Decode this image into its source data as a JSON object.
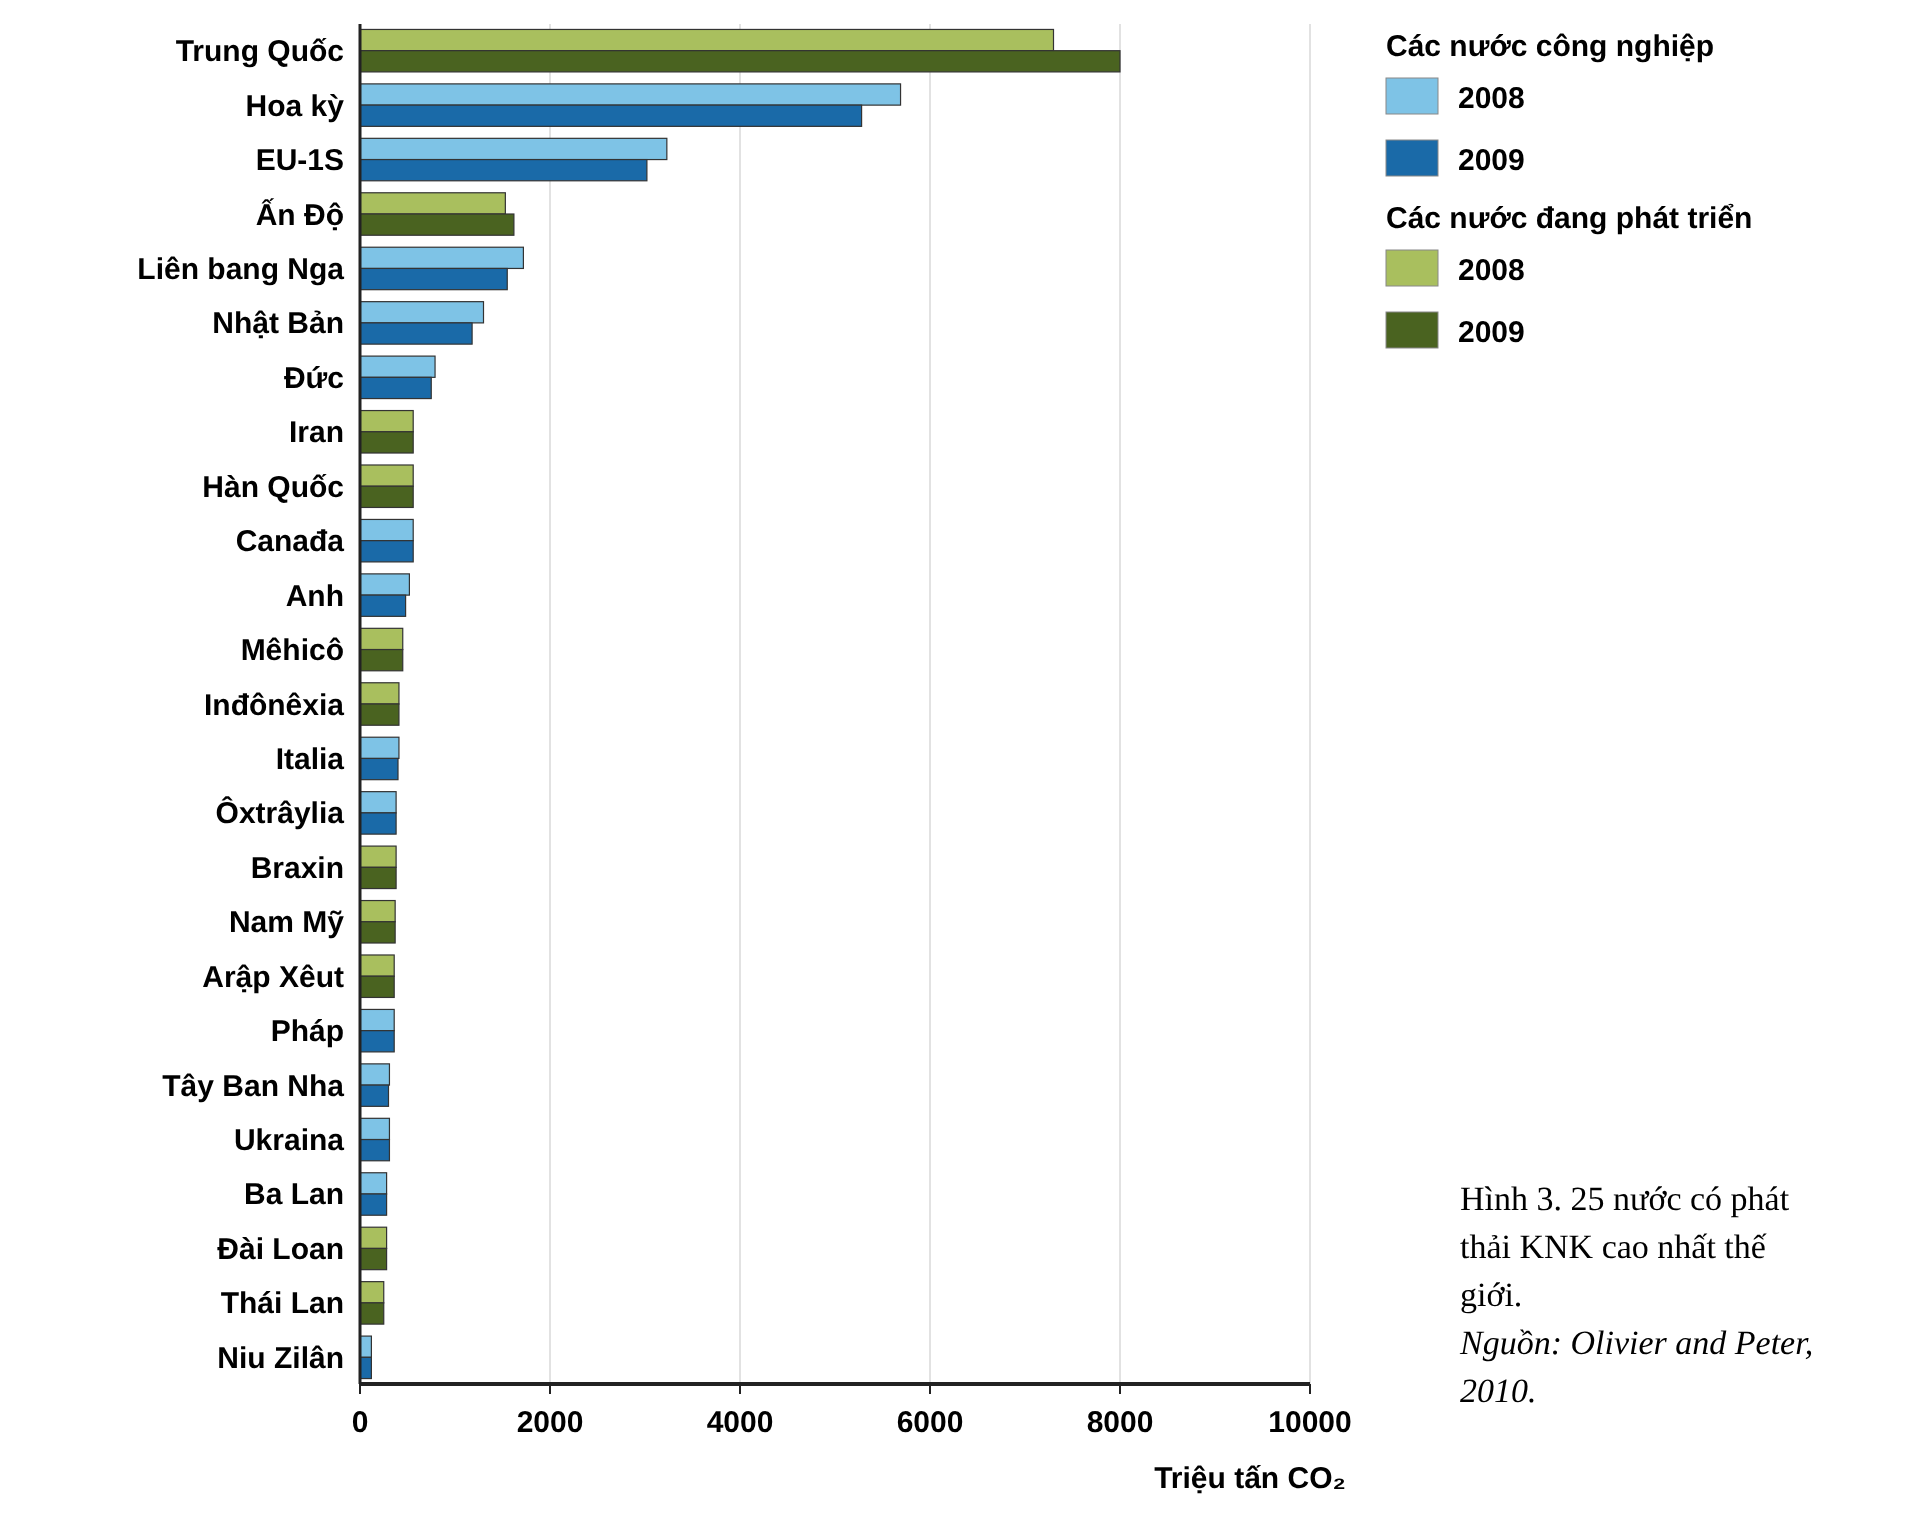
{
  "chart_data": {
    "type": "bar",
    "orientation": "horizontal",
    "xlabel": "Triệu tấn CO₂",
    "categories": [
      "Trung Quốc",
      "Hoa kỳ",
      "EU-1S",
      "Ấn Độ",
      "Liên bang Nga",
      "Nhật Bản",
      "Đức",
      "Iran",
      "Hàn Quốc",
      "Canađa",
      "Anh",
      "Mêhicô",
      "Inđônêxia",
      "Italia",
      "Ôxtrâylia",
      "Braxin",
      "Nam Mỹ",
      "Arập Xêut",
      "Pháp",
      "Tây Ban Nha",
      "Ukraina",
      "Ba Lan",
      "Đài Loan",
      "Thái Lan",
      "Niu Zilân"
    ],
    "series": [
      {
        "name": "2008",
        "color": "#7ec3e6",
        "values": [
          null,
          5690,
          3230,
          null,
          1720,
          1300,
          790,
          null,
          null,
          560,
          520,
          null,
          null,
          410,
          380,
          null,
          null,
          null,
          360,
          310,
          310,
          280,
          null,
          null,
          120
        ]
      },
      {
        "name": "2009",
        "color": "#1a6aa8",
        "values": [
          null,
          5280,
          3020,
          null,
          1550,
          1180,
          750,
          null,
          null,
          560,
          480,
          null,
          null,
          400,
          380,
          null,
          null,
          null,
          360,
          300,
          310,
          280,
          null,
          null,
          120
        ]
      },
      {
        "name": "2008",
        "color": "#a9bf5e",
        "values": [
          7300,
          null,
          null,
          1530,
          null,
          null,
          null,
          560,
          560,
          null,
          null,
          450,
          410,
          null,
          null,
          380,
          370,
          360,
          null,
          null,
          null,
          null,
          280,
          250,
          null
        ]
      },
      {
        "name": "2009",
        "color": "#4a6320",
        "values": [
          8000,
          null,
          null,
          1620,
          null,
          null,
          null,
          560,
          560,
          null,
          null,
          450,
          410,
          null,
          null,
          380,
          370,
          360,
          null,
          null,
          null,
          null,
          280,
          250,
          null
        ]
      }
    ],
    "xlim": [
      0,
      10000
    ],
    "xticks": [
      0,
      2000,
      4000,
      6000,
      8000,
      10000
    ],
    "grid": "x",
    "legend": "top right",
    "annotations": [
      "Các nước công nghiệp",
      "Các nước đang phát triển",
      "Hình 3. 25 nước có phát thải KNK cao nhất thế giới.",
      "Nguồn: Olivier and Peter, 2010."
    ]
  }
}
